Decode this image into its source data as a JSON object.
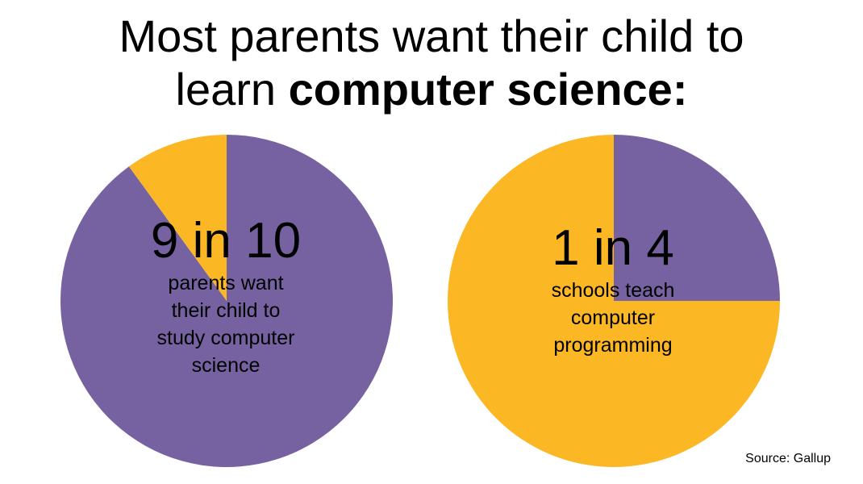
{
  "title": {
    "line1": "Most parents want their child to",
    "line2_regular": "learn ",
    "line2_bold": "computer science:"
  },
  "colors": {
    "purple": "#7662a0",
    "gold": "#fbb724"
  },
  "chart_data": [
    {
      "type": "pie",
      "slices": [
        {
          "value": 90,
          "color": "#7662a0"
        },
        {
          "value": 10,
          "color": "#fbb724"
        }
      ],
      "headline": "9 in 10",
      "caption": [
        "parents want",
        "their child to",
        "study computer",
        "science"
      ]
    },
    {
      "type": "pie",
      "slices": [
        {
          "value": 25,
          "color": "#7662a0"
        },
        {
          "value": 75,
          "color": "#fbb724"
        }
      ],
      "headline": "1 in 4",
      "caption": [
        "schools teach",
        "computer",
        "programming"
      ]
    }
  ],
  "source": "Source: Gallup"
}
